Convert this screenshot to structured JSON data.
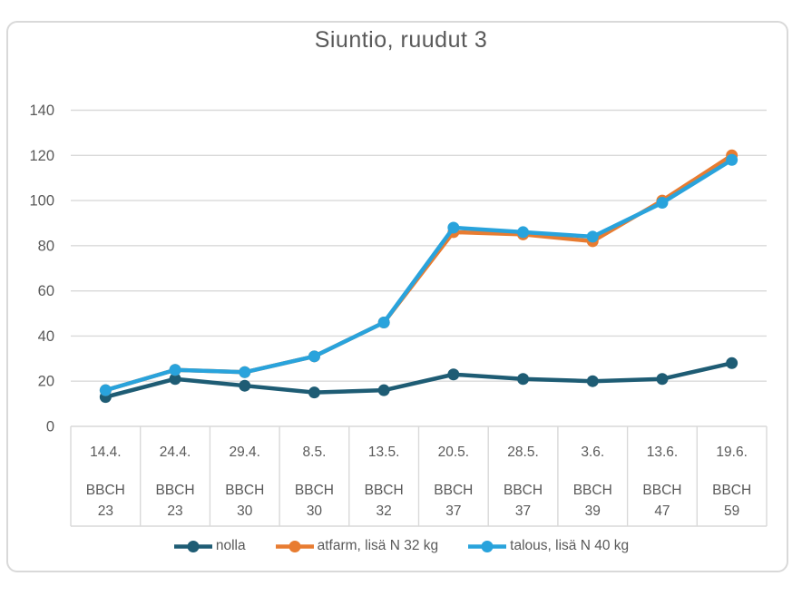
{
  "chart_data": {
    "type": "line",
    "title": "Siuntio, ruudut 3",
    "xlabel": "",
    "ylabel": "",
    "ylim": [
      0,
      140
    ],
    "ytick_step": 20,
    "yticks": [
      "0",
      "20",
      "40",
      "60",
      "80",
      "100",
      "120",
      "140"
    ],
    "grid": true,
    "legend_position": "bottom",
    "categories": [
      {
        "date": "14.4.",
        "bbch": "BBCH 23"
      },
      {
        "date": "24.4.",
        "bbch": "BBCH 23"
      },
      {
        "date": "29.4.",
        "bbch": "BBCH 30"
      },
      {
        "date": "8.5.",
        "bbch": "BBCH 30"
      },
      {
        "date": "13.5.",
        "bbch": "BBCH 32"
      },
      {
        "date": "20.5.",
        "bbch": "BBCH 37"
      },
      {
        "date": "28.5.",
        "bbch": "BBCH 37"
      },
      {
        "date": "3.6.",
        "bbch": "BBCH 39"
      },
      {
        "date": "13.6.",
        "bbch": "BBCH 47"
      },
      {
        "date": "19.6.",
        "bbch": "BBCH 59"
      }
    ],
    "series": [
      {
        "name": "nolla",
        "color": "#1E5C74",
        "values": [
          13,
          21,
          18,
          15,
          16,
          23,
          21,
          20,
          21,
          28
        ]
      },
      {
        "name": "atfarm, lisä N 32 kg",
        "color": "#E87C31",
        "values": [
          16,
          25,
          24,
          31,
          46,
          86,
          85,
          82,
          100,
          120
        ]
      },
      {
        "name": "talous, lisä N 40 kg",
        "color": "#29A3DC",
        "values": [
          16,
          25,
          24,
          31,
          46,
          88,
          86,
          84,
          99,
          118
        ]
      }
    ]
  },
  "colors": {
    "grid": "#D9D9D9",
    "axis_text": "#595959",
    "frame_border": "#D9D9D9",
    "background": "#FFFFFF"
  }
}
